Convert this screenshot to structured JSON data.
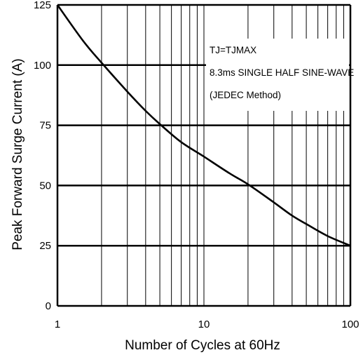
{
  "chart_data": {
    "type": "line",
    "title": "",
    "xlabel": "Number of Cycles at 60Hz",
    "ylabel": "Peak Forward Surge Current (A)",
    "x_scale": "log",
    "xlim": [
      1,
      100
    ],
    "ylim": [
      0,
      125
    ],
    "x_ticks": [
      {
        "value": 1,
        "label": "1"
      },
      {
        "value": 10,
        "label": "10"
      },
      {
        "value": 100,
        "label": "100"
      }
    ],
    "y_ticks": [
      {
        "value": 0,
        "label": "0"
      },
      {
        "value": 25,
        "label": "25"
      },
      {
        "value": 50,
        "label": "50"
      },
      {
        "value": 75,
        "label": "75"
      },
      {
        "value": 100,
        "label": "100"
      },
      {
        "value": 125,
        "label": "125"
      }
    ],
    "grid": true,
    "annotations": [
      "TJ=TJMAX",
      "8.3ms SINGLE HALF SINE-WAVE",
      "(JEDEC Method)"
    ],
    "series": [
      {
        "x": [
          1,
          1.5,
          2,
          3,
          4,
          5,
          7,
          10,
          15,
          20,
          30,
          40,
          50,
          70,
          100
        ],
        "values": [
          125,
          110,
          101,
          89,
          81,
          75.5,
          68,
          62,
          55,
          50.5,
          43,
          37.5,
          34,
          29,
          25
        ]
      }
    ]
  },
  "colors": {
    "line": "#000000",
    "grid": "#000000",
    "background": "#ffffff"
  }
}
